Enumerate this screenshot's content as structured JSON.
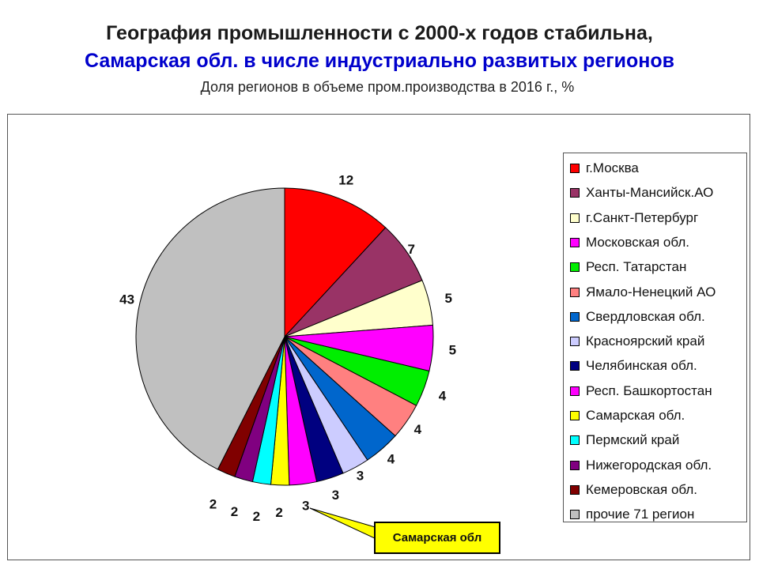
{
  "header": {
    "title_line1": "География промышленности с 2000-х годов стабильна,",
    "title_line2": "Самарская обл. в числе индустриально развитых регионов",
    "subtitle": "Доля регионов в объеме пром.производства в 2016 г., %"
  },
  "callout": {
    "text": "Самарская обл"
  },
  "chart_data": {
    "type": "pie",
    "title": "",
    "legend_placement": "right",
    "slices": [
      {
        "label": "г.Москва",
        "value": 12,
        "value_label": "12",
        "color": "#ff0000"
      },
      {
        "label": "Ханты-Мансийск.АО",
        "value": 7,
        "value_label": "7",
        "color": "#993366"
      },
      {
        "label": "г.Санкт-Петербург",
        "value": 5,
        "value_label": "5",
        "color": "#ffffcc"
      },
      {
        "label": "Московская обл.",
        "value": 5,
        "value_label": "5",
        "color": "#ff00ff"
      },
      {
        "label": "Респ. Татарстан",
        "value": 4,
        "value_label": "4",
        "color": "#00ee00"
      },
      {
        "label": "Ямало-Ненецкий АО",
        "value": 4,
        "value_label": "4",
        "color": "#ff8080"
      },
      {
        "label": "Свердловская обл.",
        "value": 4,
        "value_label": "4",
        "color": "#0066cc"
      },
      {
        "label": "Красноярский край",
        "value": 3,
        "value_label": "3",
        "color": "#ccccff"
      },
      {
        "label": "Челябинская обл.",
        "value": 3,
        "value_label": "3",
        "color": "#000080"
      },
      {
        "label": "Респ. Башкортостан",
        "value": 3,
        "value_label": "3",
        "color": "#ff00ff"
      },
      {
        "label": "Самарская обл.",
        "value": 2,
        "value_label": "2",
        "color": "#ffff00"
      },
      {
        "label": "Пермский край",
        "value": 2,
        "value_label": "2",
        "color": "#00ffff"
      },
      {
        "label": "Нижегородская обл.",
        "value": 2,
        "value_label": "2",
        "color": "#800080"
      },
      {
        "label": "Кемеровская обл.",
        "value": 2,
        "value_label": "2",
        "color": "#800000"
      },
      {
        "label": "прочие 71 регион",
        "value": 43,
        "value_label": "43",
        "color": "#c0c0c0"
      }
    ]
  }
}
